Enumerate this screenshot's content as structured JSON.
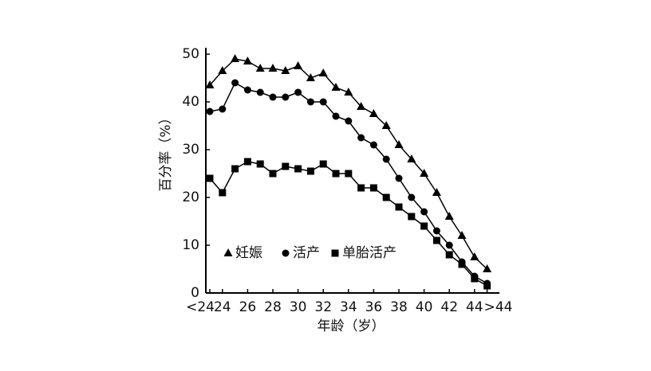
{
  "chart_data": {
    "type": "line",
    "xlabel": "年龄（岁）",
    "ylabel": "百分率（%）",
    "categories": [
      "<24",
      "24",
      null,
      "26",
      null,
      "28",
      null,
      "30",
      null,
      "32",
      null,
      "34",
      null,
      "36",
      null,
      "38",
      null,
      "40",
      null,
      "42",
      null,
      "44",
      ">44"
    ],
    "series": [
      {
        "name": "妊娠",
        "color": "#000000",
        "marker": "triangle",
        "values": [
          43.5,
          46.5,
          49,
          48.5,
          47,
          47,
          46.5,
          47.5,
          45,
          46,
          43,
          42,
          39,
          37.5,
          35,
          31,
          28,
          25,
          21,
          16,
          12,
          7.5,
          5
        ]
      },
      {
        "name": "活产",
        "color": "#000000",
        "marker": "circle",
        "values": [
          38,
          38.5,
          44,
          42.5,
          42,
          41,
          41,
          42,
          40,
          40,
          37,
          36,
          32.5,
          31,
          28,
          24,
          20,
          17,
          13,
          10,
          6.5,
          3.5,
          2
        ]
      },
      {
        "name": "单胎活产",
        "color": "#000000",
        "marker": "square",
        "values": [
          24,
          21,
          26,
          27.5,
          27,
          25,
          26.5,
          26,
          25.5,
          27,
          25,
          25,
          22,
          22,
          20,
          18,
          16,
          14,
          11,
          8,
          6,
          3,
          1.5
        ]
      }
    ],
    "ylim": [
      0,
      50
    ],
    "yticks": [
      0,
      10,
      20,
      30,
      40,
      50
    ],
    "grid": false
  }
}
